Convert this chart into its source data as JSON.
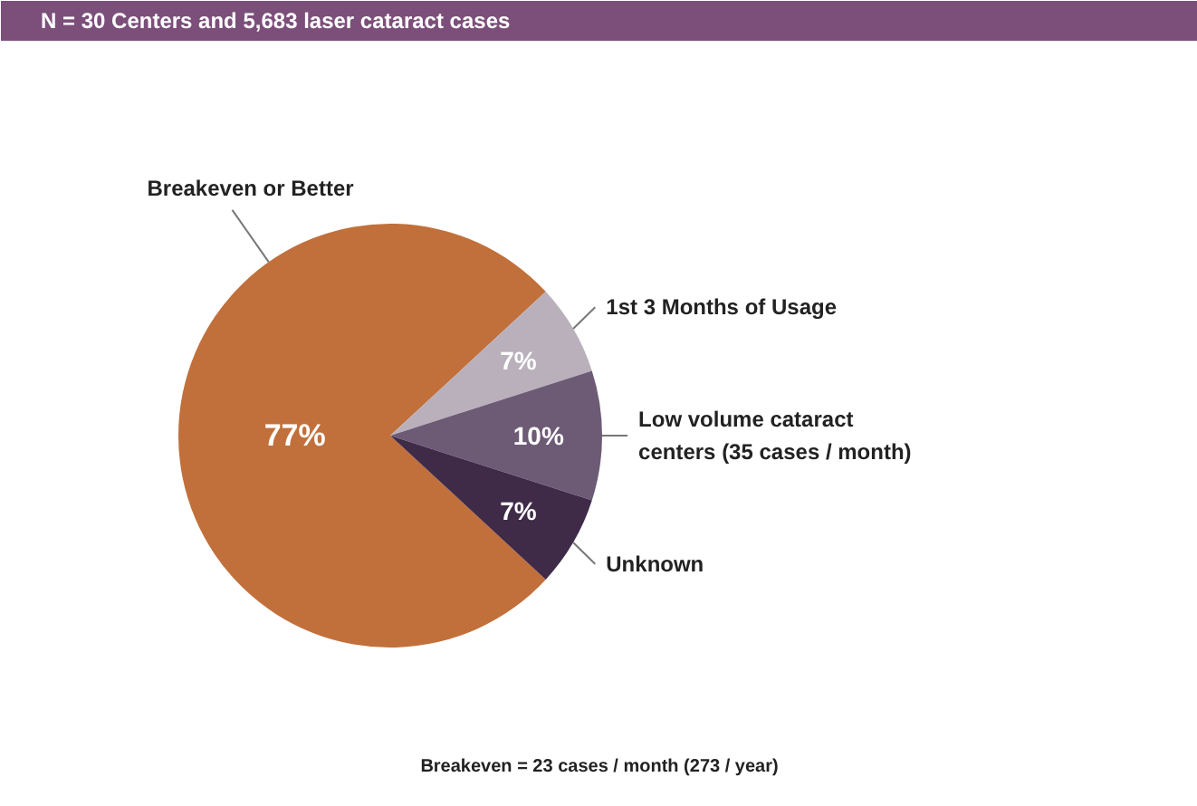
{
  "chart_data": {
    "type": "pie",
    "title": "N = 30 Centers and 5,683 laser cataract cases",
    "categories": [
      "Breakeven or Better",
      "1st 3 Months of Usage",
      "Low volume cataract centers (35 cases / month)",
      "Unknown"
    ],
    "values": [
      77,
      7,
      10,
      7
    ],
    "colors": [
      "#c1703b",
      "#b9b0bc",
      "#6d5b76",
      "#3f2a48"
    ],
    "value_labels": [
      "77%",
      "7%",
      "10%",
      "7%"
    ],
    "annotations": [
      "Breakeven = 23 cases / month (273 / year)"
    ]
  }
}
